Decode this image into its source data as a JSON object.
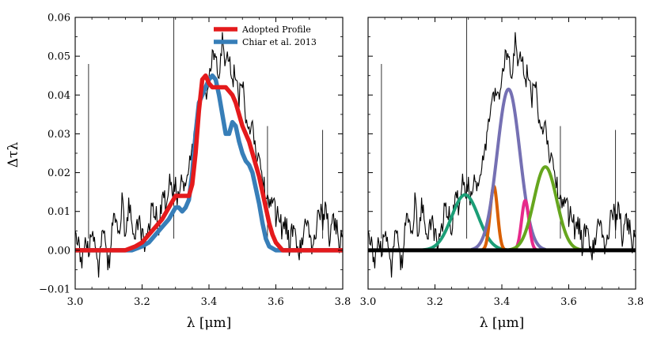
{
  "chart_data": [
    {
      "type": "line",
      "panel": "left",
      "xlabel": "λ [μm]",
      "ylabel": "Δτλ",
      "xlim": [
        3.0,
        3.8
      ],
      "ylim": [
        -0.01,
        0.06
      ],
      "xticks": [
        "3.0",
        "3.2",
        "3.4",
        "3.6",
        "3.8"
      ],
      "yticks": [
        "−0.01",
        "0.00",
        "0.01",
        "0.02",
        "0.03",
        "0.04",
        "0.05",
        "0.06"
      ],
      "legend_position": "top-right",
      "observed_spectrum": {
        "name": "Observed spectrum",
        "color": "#000000",
        "x": [
          3.0,
          3.01,
          3.02,
          3.03,
          3.04,
          3.05,
          3.06,
          3.07,
          3.08,
          3.09,
          3.1,
          3.11,
          3.12,
          3.13,
          3.14,
          3.15,
          3.16,
          3.17,
          3.18,
          3.19,
          3.2,
          3.21,
          3.22,
          3.23,
          3.24,
          3.25,
          3.26,
          3.27,
          3.28,
          3.29,
          3.3,
          3.31,
          3.32,
          3.33,
          3.34,
          3.35,
          3.36,
          3.37,
          3.38,
          3.39,
          3.4,
          3.41,
          3.42,
          3.43,
          3.44,
          3.45,
          3.46,
          3.47,
          3.48,
          3.49,
          3.5,
          3.51,
          3.52,
          3.53,
          3.54,
          3.55,
          3.56,
          3.57,
          3.58,
          3.59,
          3.6,
          3.61,
          3.62,
          3.63,
          3.64,
          3.65,
          3.66,
          3.67,
          3.68,
          3.69,
          3.7,
          3.71,
          3.72,
          3.73,
          3.74,
          3.75,
          3.76,
          3.77,
          3.78,
          3.79,
          3.8
        ],
        "y": [
          0.008,
          0.001,
          -0.002,
          0.003,
          -0.001,
          0.004,
          0.0,
          -0.005,
          0.006,
          0.002,
          -0.004,
          0.005,
          0.009,
          0.002,
          0.013,
          0.004,
          0.011,
          0.007,
          0.002,
          0.009,
          0.004,
          0.001,
          0.006,
          0.012,
          0.01,
          0.005,
          0.014,
          0.012,
          0.018,
          0.015,
          0.016,
          0.013,
          0.019,
          0.017,
          0.023,
          0.027,
          0.031,
          0.036,
          0.042,
          0.039,
          0.044,
          0.049,
          0.05,
          0.046,
          0.055,
          0.047,
          0.05,
          0.044,
          0.046,
          0.039,
          0.043,
          0.035,
          0.03,
          0.033,
          0.026,
          0.022,
          0.018,
          0.015,
          0.012,
          0.014,
          0.008,
          0.01,
          0.004,
          0.007,
          0.001,
          0.006,
          0.003,
          -0.001,
          0.002,
          0.008,
          0.004,
          0.001,
          0.005,
          0.012,
          0.007,
          0.011,
          0.003,
          0.008,
          0.006,
          0.002,
          0.004
        ],
        "spikes": [
          {
            "x": 3.04,
            "y": 0.048
          },
          {
            "x": 3.295,
            "y": 0.06
          },
          {
            "x": 3.74,
            "y": 0.031
          },
          {
            "x": 3.575,
            "y": 0.032
          }
        ]
      },
      "series": [
        {
          "name": "Adopted Profile",
          "color": "#e41a1c",
          "x": [
            3.0,
            3.15,
            3.18,
            3.2,
            3.22,
            3.24,
            3.26,
            3.28,
            3.3,
            3.32,
            3.34,
            3.35,
            3.36,
            3.37,
            3.38,
            3.39,
            3.4,
            3.41,
            3.42,
            3.43,
            3.44,
            3.45,
            3.46,
            3.47,
            3.48,
            3.49,
            3.5,
            3.51,
            3.52,
            3.53,
            3.54,
            3.55,
            3.56,
            3.57,
            3.58,
            3.59,
            3.6,
            3.62,
            3.65,
            3.7,
            3.8
          ],
          "y": [
            0.0,
            0.0,
            0.001,
            0.002,
            0.004,
            0.006,
            0.008,
            0.011,
            0.014,
            0.014,
            0.014,
            0.017,
            0.025,
            0.036,
            0.044,
            0.045,
            0.043,
            0.042,
            0.042,
            0.042,
            0.042,
            0.042,
            0.041,
            0.04,
            0.038,
            0.035,
            0.032,
            0.03,
            0.028,
            0.025,
            0.022,
            0.019,
            0.015,
            0.011,
            0.007,
            0.004,
            0.002,
            0.0,
            0.0,
            0.0,
            0.0
          ]
        },
        {
          "name": "Chiar et al. 2013",
          "color": "#377eb8",
          "x": [
            3.0,
            3.17,
            3.2,
            3.22,
            3.24,
            3.26,
            3.28,
            3.3,
            3.31,
            3.32,
            3.33,
            3.34,
            3.35,
            3.36,
            3.37,
            3.38,
            3.39,
            3.4,
            3.41,
            3.42,
            3.43,
            3.44,
            3.45,
            3.46,
            3.47,
            3.48,
            3.49,
            3.5,
            3.51,
            3.52,
            3.53,
            3.54,
            3.55,
            3.56,
            3.57,
            3.58,
            3.6,
            3.65,
            3.8
          ],
          "y": [
            0.0,
            0.0,
            0.001,
            0.002,
            0.004,
            0.006,
            0.008,
            0.011,
            0.011,
            0.01,
            0.011,
            0.013,
            0.02,
            0.03,
            0.038,
            0.04,
            0.042,
            0.044,
            0.045,
            0.044,
            0.04,
            0.035,
            0.03,
            0.03,
            0.033,
            0.032,
            0.028,
            0.025,
            0.023,
            0.022,
            0.02,
            0.016,
            0.012,
            0.007,
            0.003,
            0.001,
            0.0,
            0.0,
            0.0
          ]
        }
      ]
    },
    {
      "type": "line",
      "panel": "right",
      "xlabel": "λ [μm]",
      "xlim": [
        3.0,
        3.8
      ],
      "ylim": [
        -0.01,
        0.06
      ],
      "xticks": [
        "3.0",
        "3.2",
        "3.4",
        "3.6",
        "3.8"
      ],
      "gaussian_components": [
        {
          "name": "Gaussian 3.29 μm",
          "color": "#1b9e77",
          "center": 3.29,
          "amplitude": 0.0143,
          "sigma": 0.04
        },
        {
          "name": "Gaussian 3.376 μm",
          "color": "#d95f02",
          "center": 3.376,
          "amplitude": 0.0165,
          "sigma": 0.011
        },
        {
          "name": "Gaussian 3.42 μm",
          "color": "#7570b3",
          "center": 3.42,
          "amplitude": 0.0415,
          "sigma": 0.034
        },
        {
          "name": "Gaussian 3.47 μm",
          "color": "#e7298a",
          "center": 3.47,
          "amplitude": 0.0128,
          "sigma": 0.011
        },
        {
          "name": "Gaussian 3.53 μm",
          "color": "#66a61e",
          "center": 3.53,
          "amplitude": 0.0215,
          "sigma": 0.034
        }
      ],
      "baseline": {
        "name": "Zero baseline",
        "color": "#000000",
        "y": 0.0
      }
    }
  ]
}
